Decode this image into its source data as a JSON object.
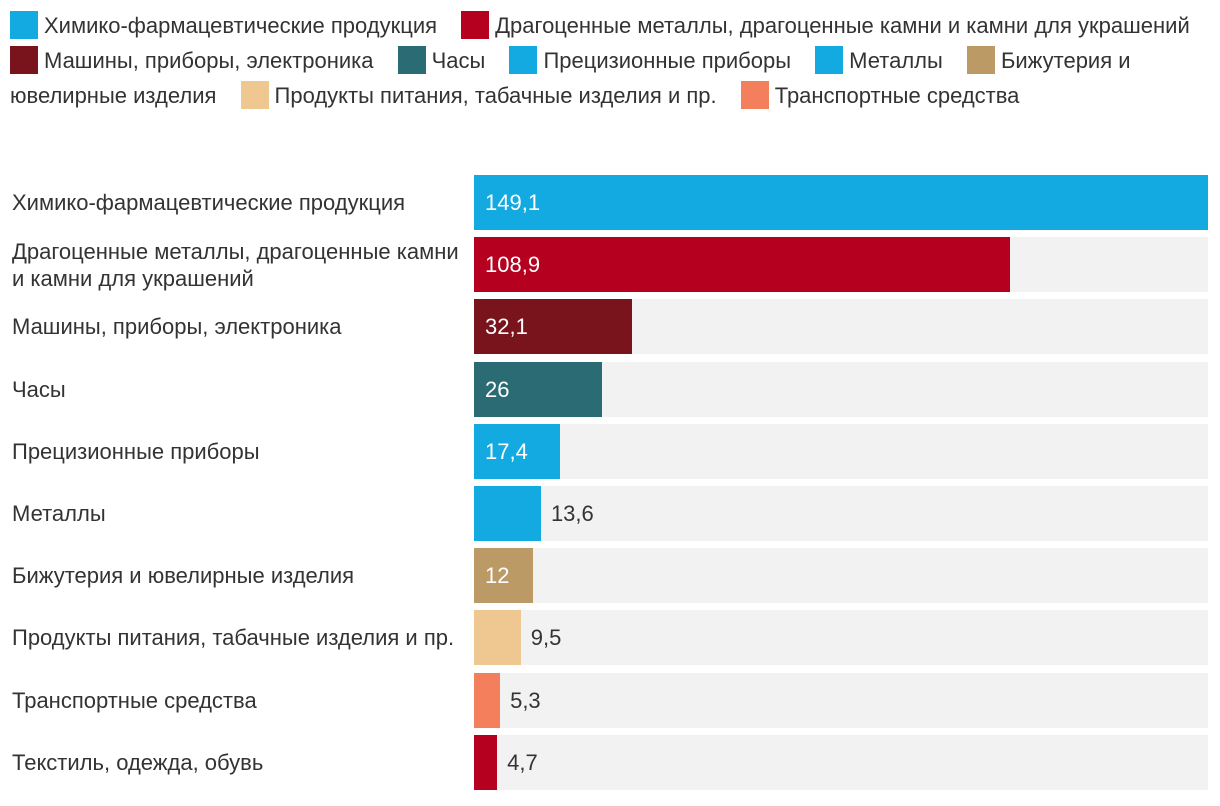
{
  "legend": [
    {
      "label": "Химико-фармацевтические продукция",
      "color": "#13a9e1"
    },
    {
      "label": "Драгоценные металлы, драгоценные камни и камни для украшений",
      "color": "#b5001f"
    },
    {
      "label": "Машины, приборы, электроника",
      "color": "#79131c"
    },
    {
      "label": "Часы",
      "color": "#2b6b74"
    },
    {
      "label": "Прецизионные приборы",
      "color": "#13a9e1"
    },
    {
      "label": "Металлы",
      "color": "#13a9e1"
    },
    {
      "label": "Бижутерия и ювелирные изделия",
      "color": "#bb9a66"
    },
    {
      "label": "Продукты питания, табачные изделия и пр.",
      "color": "#efc790"
    },
    {
      "label": "Транспортные средства",
      "color": "#f47f5d"
    }
  ],
  "chart_data": {
    "type": "bar",
    "orientation": "horizontal",
    "title": "",
    "xlabel": "",
    "ylabel": "",
    "xlim": [
      0,
      149.1
    ],
    "categories": [
      "Химико-фармацевтические продукция",
      "Драгоценные металлы, драгоценные камни и камни для украшений",
      "Машины, приборы, электроника",
      "Часы",
      "Прецизионные приборы",
      "Металлы",
      "Бижутерия и ювелирные изделия",
      "Продукты питания, табачные изделия и пр.",
      "Транспортные средства",
      "Текстиль, одежда, обувь"
    ],
    "values": [
      149.1,
      108.9,
      32.1,
      26,
      17.4,
      13.6,
      12,
      9.5,
      5.3,
      4.7
    ],
    "value_labels": [
      "149,1",
      "108,9",
      "32,1",
      "26",
      "17,4",
      "13,6",
      "12",
      "9,5",
      "5,3",
      "4,7"
    ],
    "colors": [
      "#13a9e1",
      "#b5001f",
      "#79131c",
      "#2b6b74",
      "#13a9e1",
      "#13a9e1",
      "#bb9a66",
      "#efc790",
      "#f47f5d",
      "#b5001f"
    ],
    "label_inside": [
      true,
      true,
      true,
      true,
      true,
      false,
      true,
      false,
      false,
      false
    ]
  }
}
